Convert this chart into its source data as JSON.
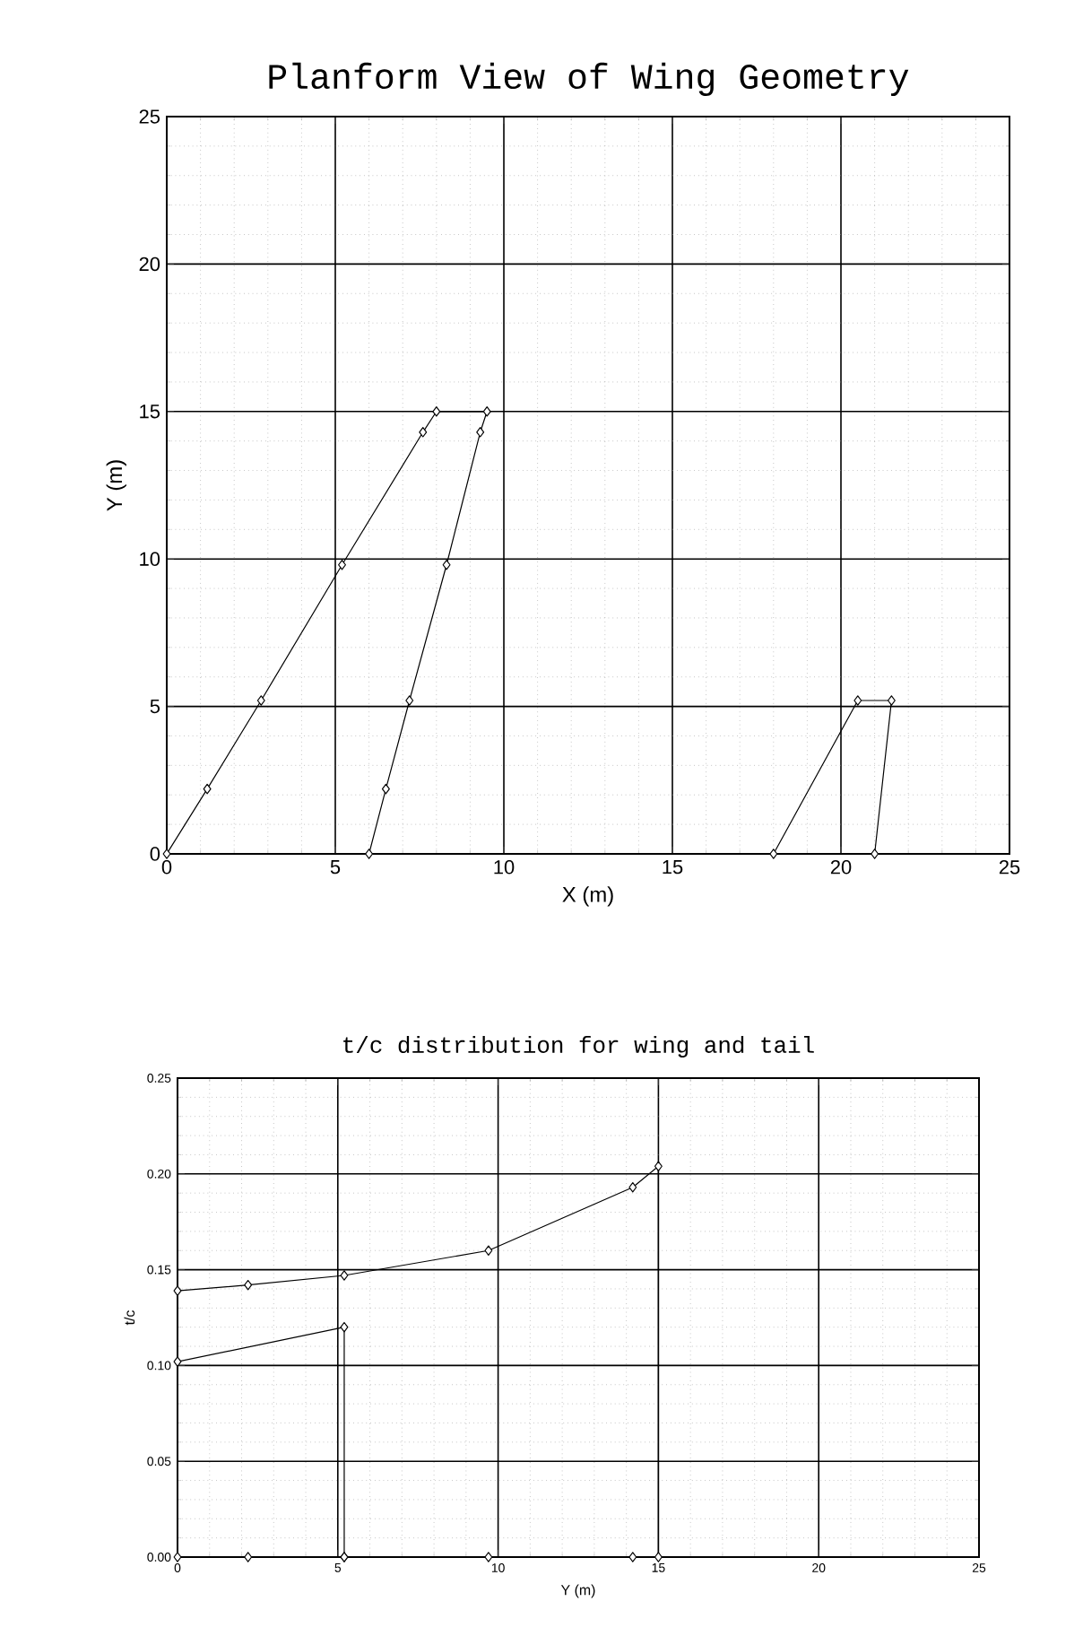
{
  "chart_data": [
    {
      "type": "line",
      "title": "Planform View of Wing Geometry",
      "xlabel": "X (m)",
      "ylabel": "Y (m)",
      "xlim": [
        0,
        25
      ],
      "ylim": [
        0,
        25
      ],
      "xticks": [
        0,
        5,
        10,
        15,
        20,
        25
      ],
      "yticks": [
        0,
        5,
        10,
        15,
        20,
        25
      ],
      "grid": true,
      "marker": "diamond",
      "line_style": "solid",
      "series": [
        {
          "color": "#000000",
          "x": [
            0,
            1.2,
            2.8,
            5.2,
            7.6,
            8.0,
            9.5,
            9.3,
            8.3,
            7.2,
            6.5,
            6.0
          ],
          "values": [
            0,
            2.2,
            5.2,
            9.8,
            14.3,
            15,
            15,
            14.3,
            9.8,
            5.2,
            2.2,
            0
          ]
        },
        {
          "color": "#000000",
          "x": [
            18,
            20.5,
            21.5,
            21
          ],
          "values": [
            0,
            5.2,
            5.2,
            0
          ]
        }
      ]
    },
    {
      "type": "line",
      "title": "t/c distribution for wing and tail",
      "xlabel": "Y (m)",
      "ylabel": "t/c",
      "xlim": [
        0,
        25
      ],
      "ylim": [
        0,
        0.25
      ],
      "xticks": [
        0,
        5,
        10,
        15,
        20,
        25
      ],
      "yticks": [
        {
          "value": 0,
          "label": "0.00"
        },
        0.05,
        {
          "value": 0.1,
          "label": "0.10"
        },
        0.15,
        {
          "value": 0.2,
          "label": "0.20"
        },
        0.25
      ],
      "grid": true,
      "marker": "diamond",
      "line_style": "solid",
      "series": [
        {
          "color": "#000000",
          "x": [
            0,
            2.2,
            5.2,
            9.7,
            14.2,
            15,
            15,
            14.2,
            9.7,
            5.2,
            2.2,
            0
          ],
          "values": [
            0.139,
            0.142,
            0.147,
            0.16,
            0.193,
            0.204,
            0,
            0,
            0,
            0,
            0,
            0
          ]
        },
        {
          "color": "#000000",
          "x": [
            0,
            5.2,
            5.2
          ],
          "values": [
            0.102,
            0.12,
            0
          ]
        }
      ]
    }
  ]
}
